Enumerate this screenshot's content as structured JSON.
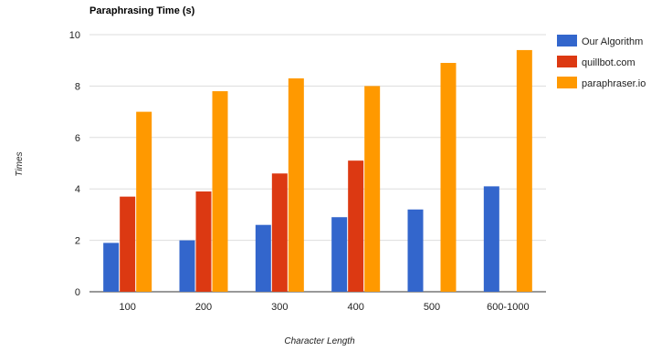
{
  "chart_data": {
    "type": "bar",
    "title": "Paraphrasing Time (s)",
    "xlabel": "Character Length",
    "ylabel": "Times",
    "ylim": [
      0,
      10
    ],
    "yticks": [
      0,
      2,
      4,
      6,
      8,
      10
    ],
    "grid": true,
    "legend_position": "right",
    "categories": [
      "100",
      "200",
      "300",
      "400",
      "500",
      "600-1000"
    ],
    "series": [
      {
        "name": "Our Algorithm",
        "color": "#3366cc",
        "values": [
          1.9,
          2.0,
          2.6,
          2.9,
          3.2,
          4.1
        ]
      },
      {
        "name": "quillbot.com",
        "color": "#dc3912",
        "values": [
          3.7,
          3.9,
          4.6,
          5.1,
          null,
          null
        ]
      },
      {
        "name": "paraphraser.io",
        "color": "#ff9900",
        "values": [
          7.0,
          7.8,
          8.3,
          8.0,
          8.9,
          9.4
        ]
      }
    ]
  }
}
